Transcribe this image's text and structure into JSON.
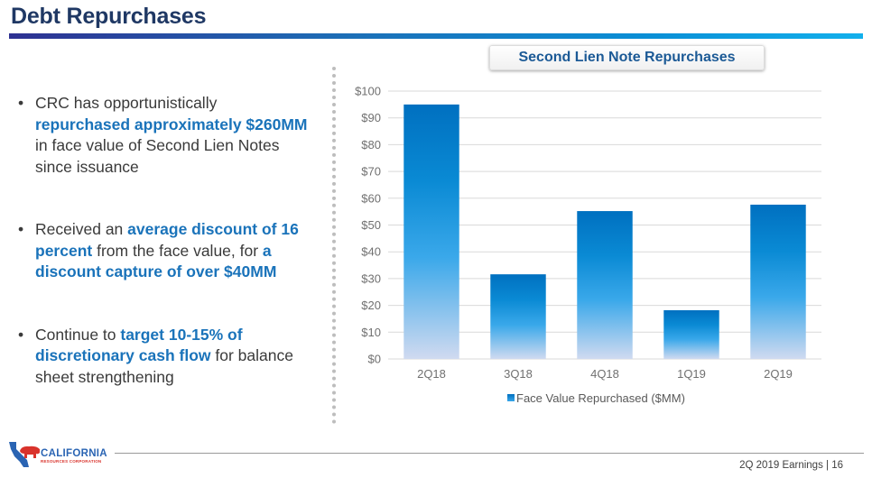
{
  "header": {
    "title": "Debt Repurchases"
  },
  "bullets": [
    {
      "parts": [
        {
          "text": "CRC has opportunistically ",
          "highlight": false
        },
        {
          "text": "repurchased approximately $260MM",
          "highlight": true
        },
        {
          "text": " in face value of Second Lien Notes since issuance",
          "highlight": false
        }
      ]
    },
    {
      "parts": [
        {
          "text": "Received an ",
          "highlight": false
        },
        {
          "text": "average discount of 16 percent",
          "highlight": true
        },
        {
          "text": " from the face value, for ",
          "highlight": false
        },
        {
          "text": "a discount capture of over $40MM",
          "highlight": true
        }
      ]
    },
    {
      "parts": [
        {
          "text": "Continue to ",
          "highlight": false
        },
        {
          "text": "target 10-15% of discretionary cash flow",
          "highlight": true
        },
        {
          "text": " for balance sheet strengthening",
          "highlight": false
        }
      ]
    }
  ],
  "colors": {
    "title": "#1f3864",
    "highlight": "#1a73ba",
    "bar_top": "#0070c0",
    "bar_mid": "#2aa3e6",
    "bar_bottom": "#d2dcf0",
    "gridline": "#d9d9d9"
  },
  "chart_data": {
    "type": "bar",
    "title": "Second Lien Note Repurchases",
    "categories": [
      "2Q18",
      "3Q18",
      "4Q18",
      "1Q19",
      "2Q19"
    ],
    "series": [
      {
        "name": "Face Value Repurchased ($MM)",
        "values": [
          95,
          31.6,
          55.2,
          18.2,
          57.6
        ]
      }
    ],
    "xlabel": "",
    "ylabel": "",
    "ylim": [
      0,
      100
    ],
    "yticks": [
      0,
      10,
      20,
      30,
      40,
      50,
      60,
      70,
      80,
      90,
      100
    ],
    "ytick_labels": [
      "$0",
      "$10",
      "$20",
      "$30",
      "$40",
      "$50",
      "$60",
      "$70",
      "$80",
      "$90",
      "$100"
    ],
    "grid": true,
    "legend": "bottom-center"
  },
  "footer": {
    "logo_name": "CALIFORNIA",
    "logo_sub": "RESOURCES CORPORATION",
    "page_label": "2Q 2019 Earnings | 16"
  }
}
